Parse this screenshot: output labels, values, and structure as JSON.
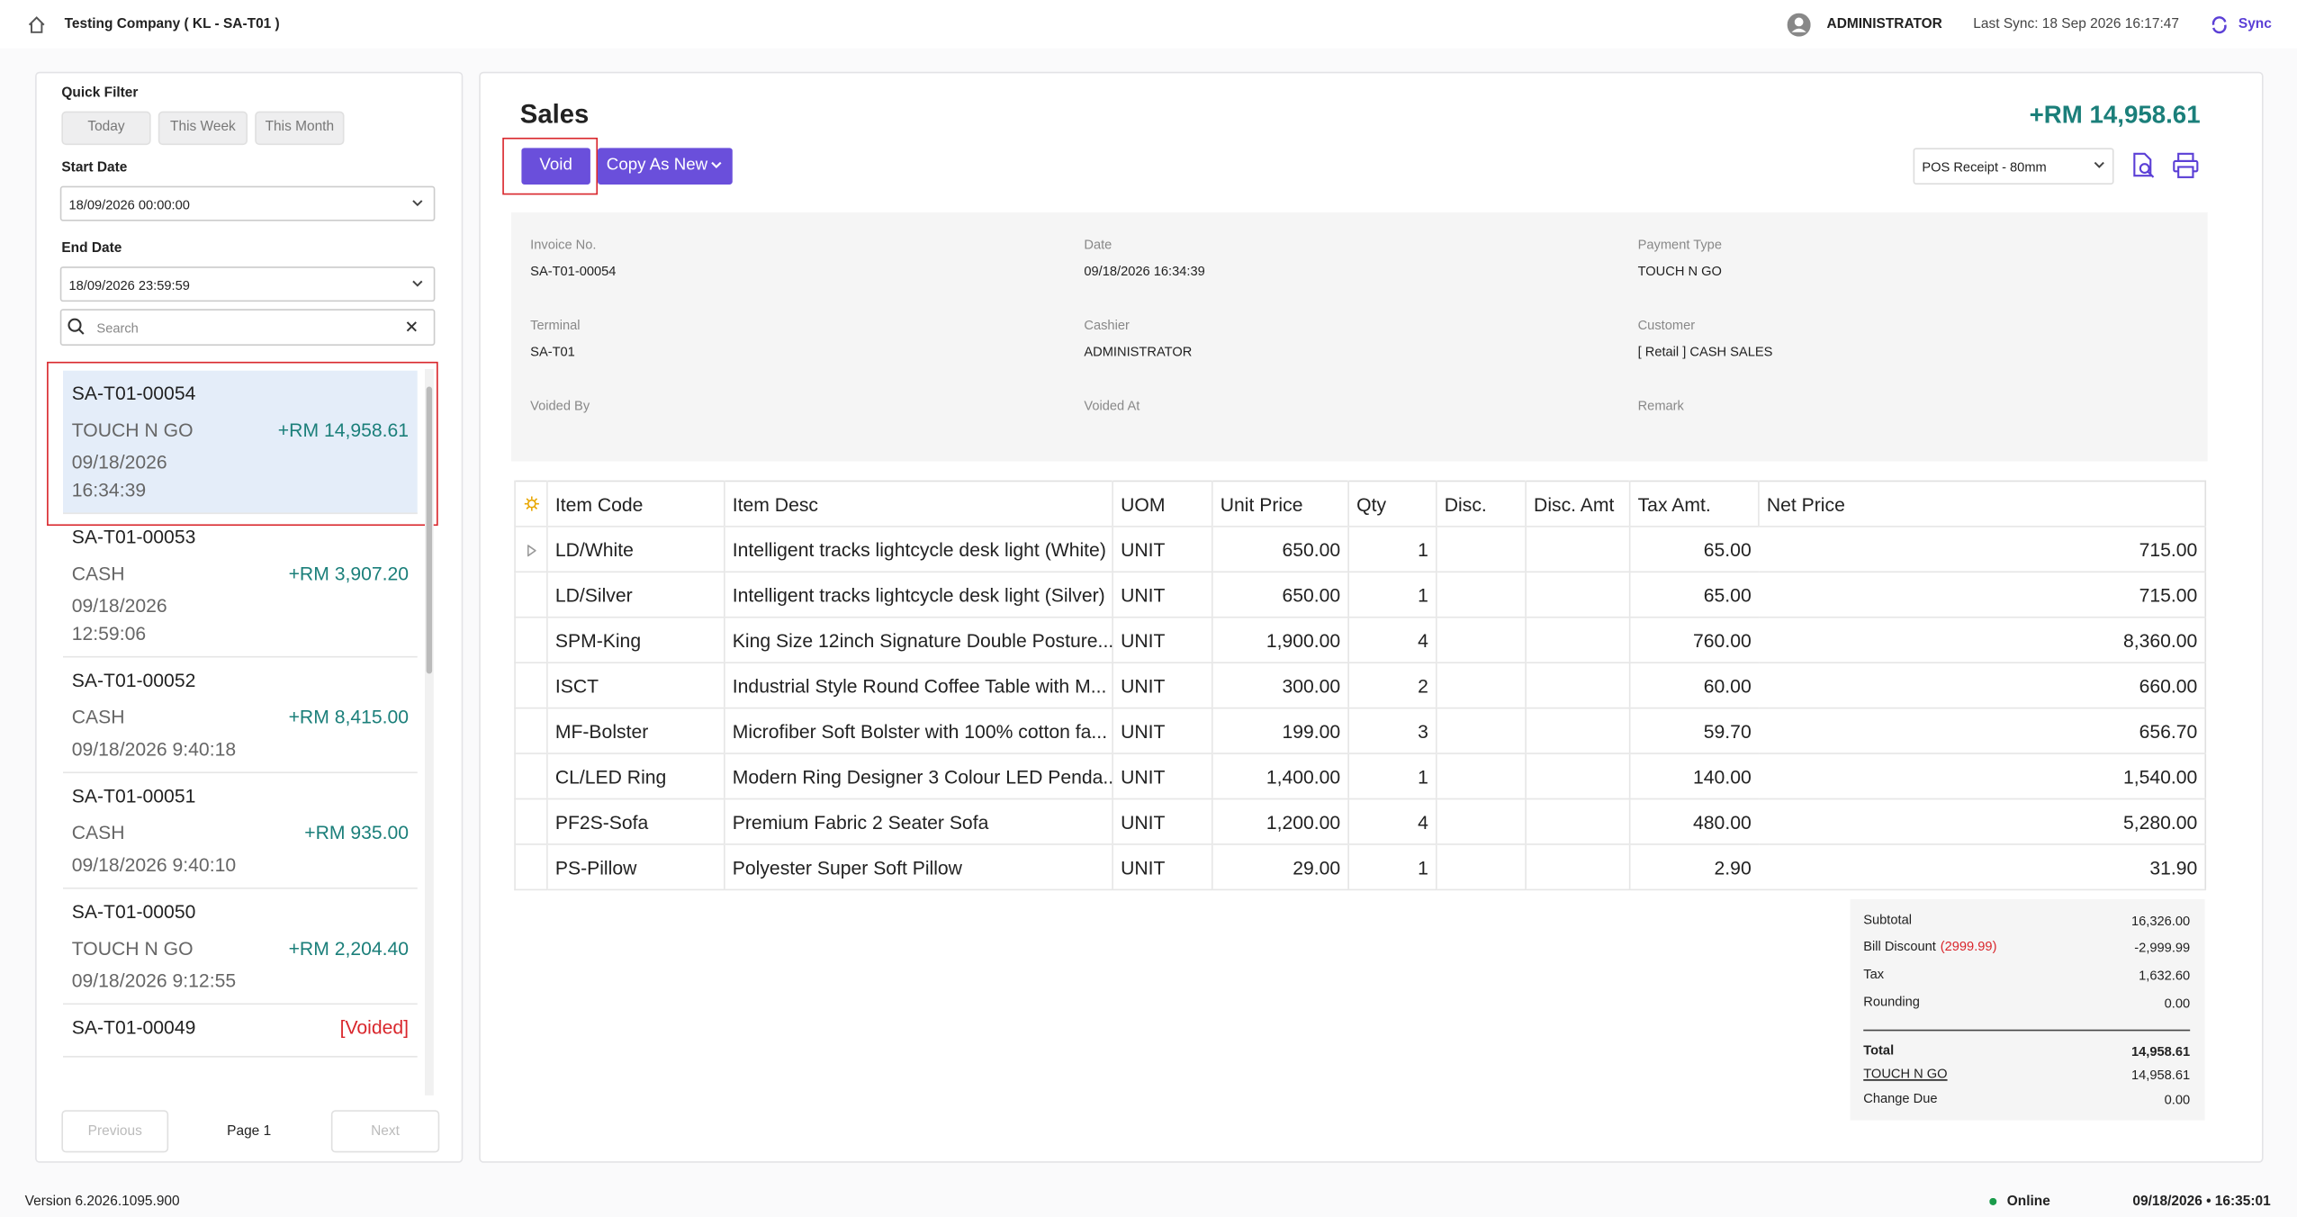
{
  "header": {
    "company": "Testing Company ( KL - SA-T01 )",
    "user": "ADMINISTRATOR",
    "last_sync": "Last Sync: 18 Sep 2026 16:17:47",
    "sync": "Sync"
  },
  "sidebar": {
    "quick_filter_label": "Quick Filter",
    "filters": [
      "Today",
      "This Week",
      "This Month"
    ],
    "start_date_label": "Start Date",
    "start_date": "18/09/2026 00:00:00",
    "end_date_label": "End Date",
    "end_date": "18/09/2026 23:59:59",
    "search_placeholder": "Search",
    "list": [
      {
        "id": "SA-T01-00054",
        "payment": "TOUCH N GO",
        "amount": "+RM 14,958.61",
        "datetime_lines": [
          "09/18/2026",
          "16:34:39"
        ]
      },
      {
        "id": "SA-T01-00053",
        "payment": "CASH",
        "amount": "+RM 3,907.20",
        "datetime_lines": [
          "09/18/2026",
          "12:59:06"
        ]
      },
      {
        "id": "SA-T01-00052",
        "payment": "CASH",
        "amount": "+RM 8,415.00",
        "datetime_lines": [
          "09/18/2026 9:40:18"
        ]
      },
      {
        "id": "SA-T01-00051",
        "payment": "CASH",
        "amount": "+RM 935.00",
        "datetime_lines": [
          "09/18/2026 9:40:10"
        ]
      },
      {
        "id": "SA-T01-00050",
        "payment": "TOUCH N GO",
        "amount": "+RM 2,204.40",
        "datetime_lines": [
          "09/18/2026 9:12:55"
        ]
      },
      {
        "id": "SA-T01-00049",
        "status": "[Voided]"
      }
    ],
    "pagination": {
      "previous": "Previous",
      "page": "Page 1",
      "next": "Next"
    }
  },
  "main": {
    "title": "Sales",
    "total": "+RM 14,958.61",
    "void": "Void",
    "copy": "Copy As New",
    "receipt": "POS Receipt - 80mm",
    "info": [
      [
        {
          "label": "Invoice No.",
          "value": "SA-T01-00054"
        },
        {
          "label": "Date",
          "value": "09/18/2026 16:34:39"
        },
        {
          "label": "Payment Type",
          "value": "TOUCH N GO"
        }
      ],
      [
        {
          "label": "Terminal",
          "value": "SA-T01"
        },
        {
          "label": "Cashier",
          "value": "ADMINISTRATOR"
        },
        {
          "label": "Customer",
          "value": "[ Retail ] CASH SALES"
        }
      ],
      [
        {
          "label": "Voided By"
        },
        {
          "label": "Voided At"
        },
        {
          "label": "Remark"
        }
      ]
    ]
  },
  "table": {
    "columns": [
      "Item Code",
      "Item Desc",
      "UOM",
      "Unit Price",
      "Qty",
      "Disc.",
      "Disc. Amt",
      "Tax Amt.",
      "Net Price"
    ],
    "rows": [
      [
        "LD/White",
        "Intelligent tracks lightcycle desk light (White)",
        "UNIT",
        "650.00",
        "1",
        "",
        "",
        "65.00",
        "715.00"
      ],
      [
        "LD/Silver",
        "Intelligent tracks lightcycle desk light (Silver)",
        "UNIT",
        "650.00",
        "1",
        "",
        "",
        "65.00",
        "715.00"
      ],
      [
        "SPM-King",
        "King Size 12inch Signature Double Posture...",
        "UNIT",
        "1,900.00",
        "4",
        "",
        "",
        "760.00",
        "8,360.00"
      ],
      [
        "ISCT",
        "Industrial Style Round Coffee Table with M...",
        "UNIT",
        "300.00",
        "2",
        "",
        "",
        "60.00",
        "660.00"
      ],
      [
        "MF-Bolster",
        "Microfiber Soft Bolster with 100% cotton fa...",
        "UNIT",
        "199.00",
        "3",
        "",
        "",
        "59.70",
        "656.70"
      ],
      [
        "CL/LED Ring",
        "Modern Ring Designer 3 Colour LED Penda...",
        "UNIT",
        "1,400.00",
        "1",
        "",
        "",
        "140.00",
        "1,540.00"
      ],
      [
        "PF2S-Sofa",
        "Premium Fabric 2 Seater Sofa",
        "UNIT",
        "1,200.00",
        "4",
        "",
        "",
        "480.00",
        "5,280.00"
      ],
      [
        "PS-Pillow",
        "Polyester Super Soft Pillow",
        "UNIT",
        "29.00",
        "1",
        "",
        "",
        "2.90",
        "31.90"
      ]
    ]
  },
  "summary": {
    "subtotal_label": "Subtotal",
    "subtotal": "16,326.00",
    "discount_label": "Bill Discount",
    "discount_note": "(2999.99)",
    "discount": "-2,999.99",
    "tax_label": "Tax",
    "tax": "1,632.60",
    "rounding_label": "Rounding",
    "rounding": "0.00",
    "total_label": "Total",
    "total": "14,958.61",
    "payment_label": "TOUCH N GO",
    "payment": "14,958.61",
    "change_label": "Change Due",
    "change": "0.00"
  },
  "footer": {
    "version": "Version 6.2026.1095.900",
    "status": "Online",
    "datetime": "09/18/2026 • 16:35:01"
  }
}
